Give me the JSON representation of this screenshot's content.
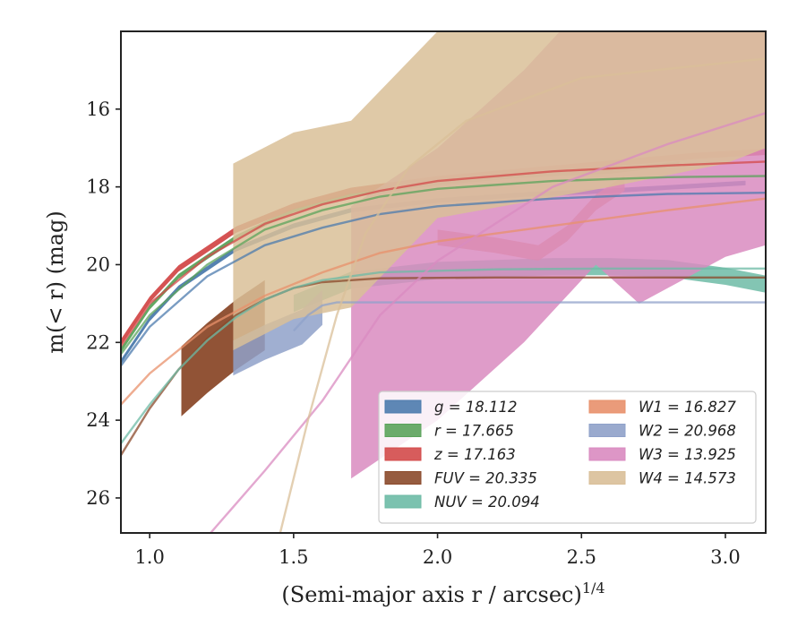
{
  "chart_data": {
    "type": "line",
    "xlabel": "(Semi-major axis r / arcsec)",
    "xlabel_sup": "1/4",
    "ylabel": "m(< r) (mag)",
    "xlim": [
      0.9,
      3.14
    ],
    "ylim": [
      26.9,
      14.0
    ],
    "y_inverted": true,
    "grid": false,
    "legend_placement": "lower-right",
    "x_ticks": [
      1.0,
      1.5,
      2.0,
      2.5,
      3.0
    ],
    "x_tick_labels": [
      "1.0",
      "1.5",
      "2.0",
      "2.5",
      "3.0"
    ],
    "y_ticks": [
      16,
      18,
      20,
      22,
      24,
      26
    ],
    "y_tick_labels": [
      "16",
      "18",
      "20",
      "22",
      "24",
      "26"
    ],
    "series": [
      {
        "name": "g = 18.112",
        "band": "g",
        "mag": "18.112",
        "color": "#4c7bad",
        "band_x": [
          0.9,
          1.0,
          1.1,
          1.3,
          1.5,
          1.7,
          2.0,
          2.3,
          2.6,
          3.07
        ],
        "band_y": [
          22.5,
          21.4,
          20.6,
          19.6,
          19.0,
          18.6,
          18.35,
          18.2,
          18.1,
          17.9
        ],
        "fit_x": [
          0.9,
          1.0,
          1.2,
          1.4,
          1.6,
          1.8,
          2.0,
          2.4,
          2.8,
          3.14
        ],
        "fit_y": [
          22.6,
          21.6,
          20.3,
          19.5,
          19.05,
          18.7,
          18.5,
          18.3,
          18.18,
          18.15
        ]
      },
      {
        "name": "r = 17.665",
        "band": "r",
        "mag": "17.665",
        "color": "#5ba35b",
        "band_x": [
          0.9,
          1.0,
          1.1,
          1.3,
          1.5,
          1.7,
          2.0,
          2.3,
          2.6,
          2.84
        ],
        "band_y": [
          22.2,
          21.1,
          20.3,
          19.3,
          18.6,
          18.2,
          17.9,
          17.7,
          17.6,
          17.4
        ],
        "fit_x": [
          0.9,
          1.0,
          1.2,
          1.4,
          1.6,
          1.8,
          2.0,
          2.4,
          2.8,
          3.14
        ],
        "fit_y": [
          22.3,
          21.3,
          20.0,
          19.1,
          18.6,
          18.25,
          18.05,
          17.85,
          17.75,
          17.72
        ]
      },
      {
        "name": "z = 17.163",
        "band": "z",
        "mag": "17.163",
        "color": "#d34a4a",
        "band_x": [
          0.9,
          1.0,
          1.1,
          1.3,
          1.5,
          1.7,
          2.0,
          2.3,
          2.6,
          2.9,
          3.14
        ],
        "band_y": [
          22.0,
          20.9,
          20.1,
          19.1,
          18.5,
          18.1,
          17.8,
          17.6,
          17.4,
          17.2,
          17.1
        ],
        "fit_x": [
          0.9,
          1.0,
          1.2,
          1.4,
          1.6,
          1.8,
          2.0,
          2.4,
          2.8,
          3.14
        ],
        "fit_y": [
          22.1,
          21.0,
          19.8,
          18.95,
          18.45,
          18.1,
          17.85,
          17.6,
          17.45,
          17.35
        ]
      },
      {
        "name": "FUV = 20.335",
        "band": "FUV",
        "mag": "20.335",
        "color": "#8b4a2b",
        "band_x": [
          1.11,
          1.2,
          1.3,
          1.4
        ],
        "band_y": [
          23.0,
          22.4,
          21.8,
          21.3
        ],
        "fit_x": [
          0.9,
          1.0,
          1.1,
          1.2,
          1.3,
          1.4,
          1.5,
          1.6,
          1.8,
          2.2,
          2.6,
          3.14
        ],
        "fit_y": [
          24.9,
          23.7,
          22.7,
          21.9,
          21.3,
          20.9,
          20.6,
          20.45,
          20.35,
          20.33,
          20.33,
          20.33
        ]
      },
      {
        "name": "NUV = 20.094",
        "band": "NUV",
        "mag": "20.094",
        "color": "#6dbba6",
        "band_x": [
          1.5,
          1.7,
          2.0,
          2.2,
          2.4,
          2.6,
          2.8,
          3.0,
          3.14
        ],
        "band_y": [
          21.0,
          20.4,
          20.15,
          20.1,
          20.05,
          20.05,
          20.1,
          20.3,
          20.5
        ],
        "fit_x": [
          0.9,
          1.0,
          1.1,
          1.2,
          1.3,
          1.4,
          1.5,
          1.6,
          1.8,
          2.2,
          2.6,
          3.14
        ],
        "fit_y": [
          24.6,
          23.6,
          22.7,
          21.95,
          21.35,
          20.9,
          20.6,
          20.4,
          20.2,
          20.12,
          20.1,
          20.1
        ]
      },
      {
        "name": "W1 = 16.827",
        "band": "W1",
        "mag": "16.827",
        "color": "#e8906b",
        "band_x": [
          2.0,
          2.2,
          2.35,
          2.45,
          2.55,
          2.65
        ],
        "band_y": [
          19.3,
          19.5,
          19.7,
          19.2,
          18.4,
          17.9
        ],
        "fit_x": [
          0.9,
          1.0,
          1.2,
          1.4,
          1.6,
          1.8,
          2.0,
          2.4,
          2.8,
          3.14
        ],
        "fit_y": [
          23.6,
          22.8,
          21.6,
          20.8,
          20.2,
          19.7,
          19.4,
          19.0,
          18.6,
          18.3
        ]
      },
      {
        "name": "W2 = 20.968",
        "band": "W2",
        "mag": "20.968",
        "color": "#8fa1c9",
        "band_x": [
          1.29,
          1.4,
          1.53,
          1.6
        ],
        "band_y": [
          22.4,
          22.0,
          21.6,
          21.1
        ],
        "fit_x": [
          1.5,
          1.55,
          1.6,
          1.65,
          1.8,
          2.2,
          2.6,
          3.14
        ],
        "fit_y": [
          21.7,
          21.3,
          21.05,
          20.97,
          20.97,
          20.97,
          20.97,
          20.97
        ]
      },
      {
        "name": "W3 = 13.925",
        "band": "W3",
        "mag": "13.925",
        "color": "#d98bc0",
        "band_x": [
          1.7,
          2.0,
          2.3,
          2.55,
          2.7,
          3.0,
          3.14
        ],
        "band_y": [
          22.0,
          20.5,
          18.5,
          16.5,
          17.5,
          16.3,
          16.0
        ],
        "fit_x": [
          1.2,
          1.4,
          1.6,
          1.8,
          2.0,
          2.4,
          2.8,
          3.14
        ],
        "fit_y": [
          27.0,
          25.3,
          23.5,
          21.3,
          19.9,
          18.0,
          16.9,
          16.1
        ]
      },
      {
        "name": "W4 = 14.573",
        "band": "W4",
        "mag": "14.573",
        "color": "#d9bf98",
        "band_x": [
          1.29,
          1.5,
          1.7,
          2.0,
          2.3,
          2.6,
          3.0,
          3.14
        ],
        "band_y": [
          19.8,
          19.0,
          18.7,
          16.4,
          16.0,
          15.6,
          15.0,
          14.6
        ],
        "fit_x": [
          1.45,
          1.55,
          1.65,
          1.75,
          1.9,
          2.1,
          2.5,
          3.14
        ],
        "fit_y": [
          27.0,
          24.0,
          21.3,
          19.2,
          17.5,
          16.3,
          15.2,
          14.7
        ]
      }
    ]
  }
}
